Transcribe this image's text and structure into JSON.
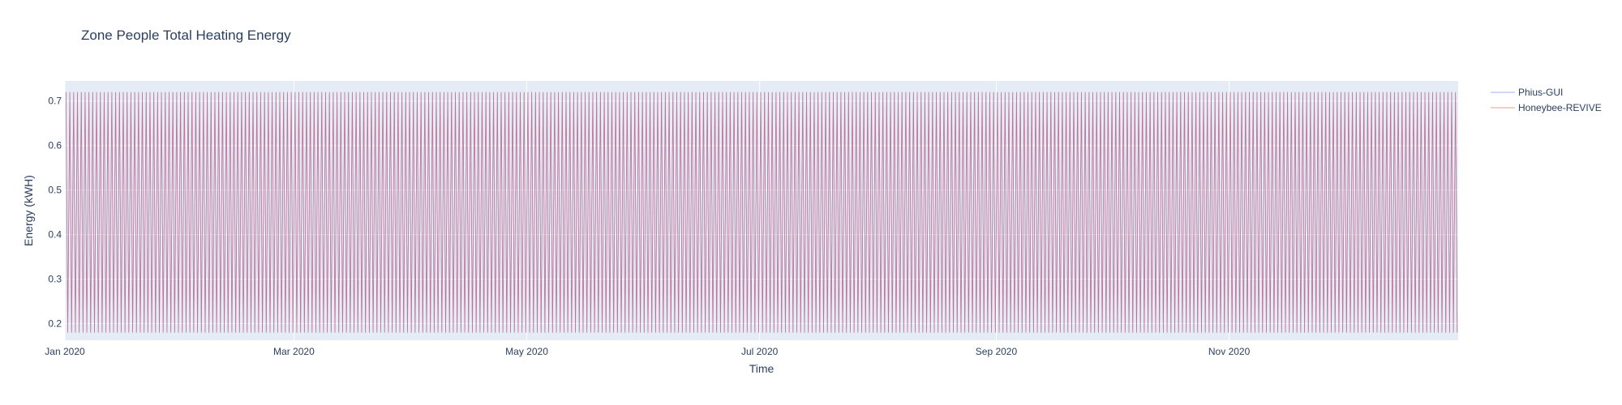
{
  "chart_data": {
    "type": "line",
    "title": "Zone People Total Heating Energy",
    "xlabel": "Time",
    "ylabel": "Energy (kWH)",
    "x_range": [
      "2020-01-01",
      "2020-12-31"
    ],
    "ylim": [
      0.163,
      0.745
    ],
    "x_ticks": [
      {
        "date": "2020-01-01",
        "label": "Jan 2020"
      },
      {
        "date": "2020-03-01",
        "label": "Mar 2020"
      },
      {
        "date": "2020-05-01",
        "label": "May 2020"
      },
      {
        "date": "2020-07-01",
        "label": "Jul 2020"
      },
      {
        "date": "2020-09-01",
        "label": "Sep 2020"
      },
      {
        "date": "2020-11-01",
        "label": "Nov 2020"
      }
    ],
    "y_ticks": [
      0.2,
      0.3,
      0.4,
      0.5,
      0.6,
      0.7
    ],
    "grid": true,
    "legend_position": "top-right",
    "daily_pattern": {
      "high": 0.72,
      "low": 0.18
    },
    "series": [
      {
        "name": "Phius-GUI",
        "color": "#636efa",
        "daily_high": 0.72,
        "daily_low": 0.18
      },
      {
        "name": "Honeybee-REVIVE",
        "color": "#ef553b",
        "daily_high": 0.72,
        "daily_low": 0.18
      }
    ]
  }
}
